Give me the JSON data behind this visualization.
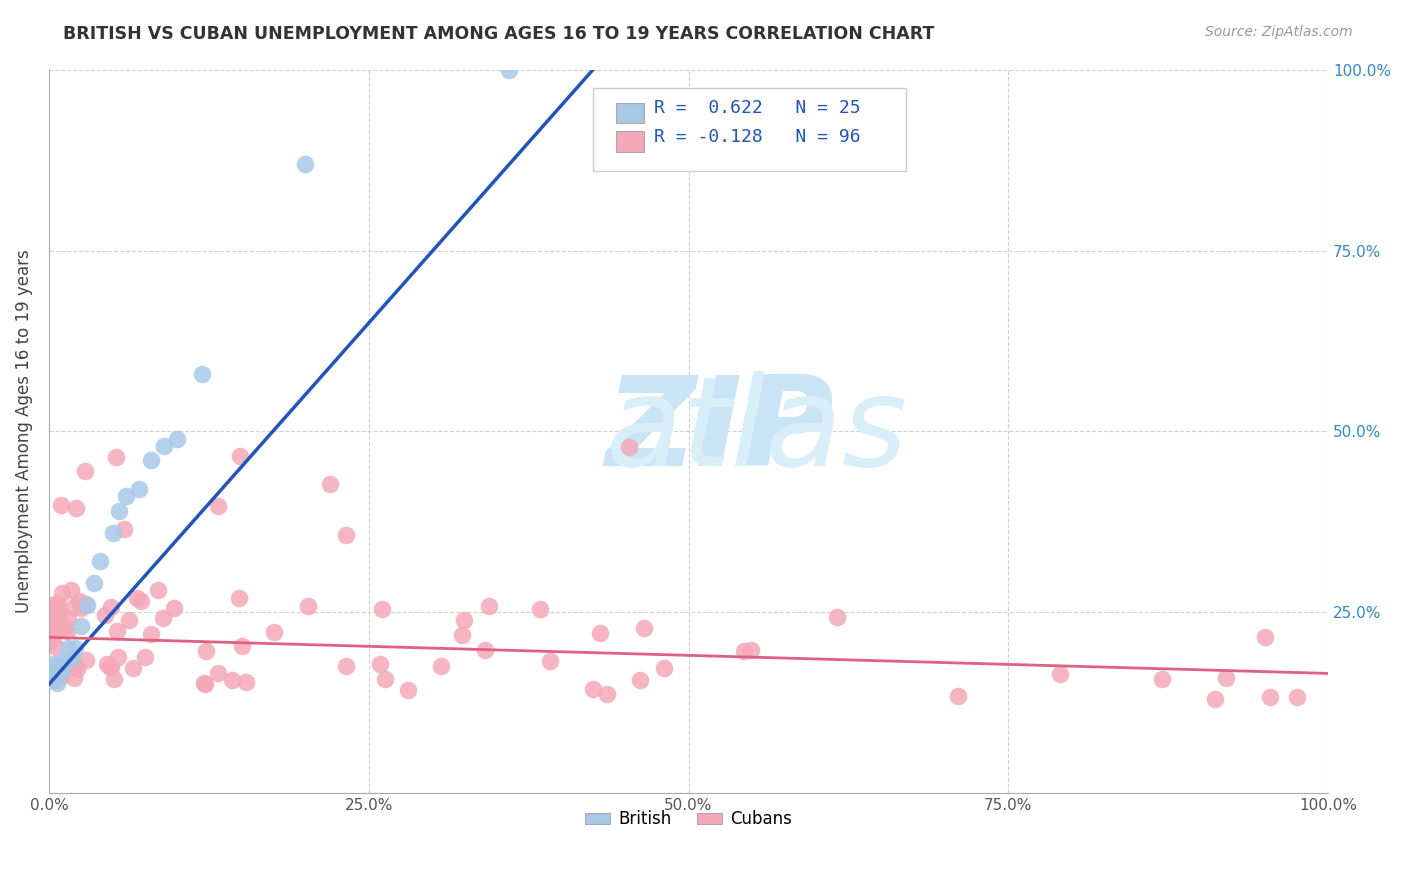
{
  "title": "BRITISH VS CUBAN UNEMPLOYMENT AMONG AGES 16 TO 19 YEARS CORRELATION CHART",
  "source_text": "Source: ZipAtlas.com",
  "ylabel": "Unemployment Among Ages 16 to 19 years",
  "xlim": [
    0.0,
    1.0
  ],
  "ylim": [
    0.0,
    1.0
  ],
  "xticks": [
    0.0,
    0.25,
    0.5,
    0.75,
    1.0
  ],
  "yticks": [
    0.0,
    0.25,
    0.5,
    0.75,
    1.0
  ],
  "xticklabels": [
    "0.0%",
    "25.0%",
    "50.0%",
    "75.0%",
    "100.0%"
  ],
  "left_yticklabels": [
    "",
    "",
    "",
    "",
    ""
  ],
  "right_yticklabels": [
    "",
    "25.0%",
    "50.0%",
    "75.0%",
    "100.0%"
  ],
  "grid_color": "#cccccc",
  "background_color": "#ffffff",
  "watermark_line1": "ZIP",
  "watermark_line2": "atlas",
  "watermark_color": "#c8e4f5",
  "british_color": "#a8c8e8",
  "cuban_color": "#f4a8b8",
  "british_line_color": "#2255bb",
  "cuban_line_color": "#e06080",
  "british_slope": 2.0,
  "british_intercept": 0.15,
  "cuban_slope": -0.05,
  "cuban_intercept": 0.215,
  "r_british": "0.622",
  "n_british": "25",
  "r_cuban": "-0.128",
  "n_cuban": "96"
}
